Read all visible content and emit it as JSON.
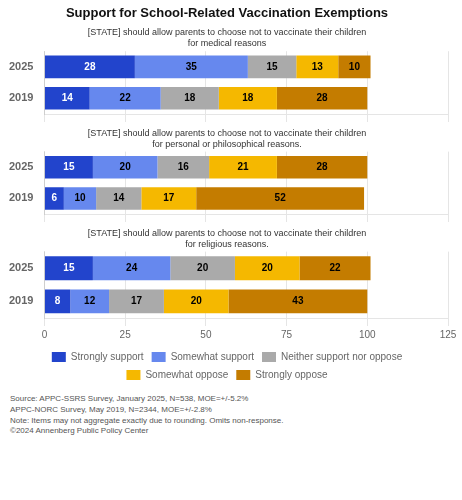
{
  "chart_data": [
    {
      "type": "bar",
      "orientation": "horizontal",
      "stacked": true,
      "title": "Support for School-Related Vaccination Exemptions",
      "subtitle": "[STATE] should allow parents to choose not to vaccinate their children\nfor medical reasons",
      "categories": [
        "2025",
        "2019"
      ],
      "series": [
        {
          "name": "Strongly support",
          "color": "#2244cc",
          "values": [
            28,
            14
          ]
        },
        {
          "name": "Somewhat support",
          "color": "#6688ee",
          "values": [
            35,
            22
          ]
        },
        {
          "name": "Neither support nor oppose",
          "color": "#aaaaaa",
          "values": [
            15,
            18
          ]
        },
        {
          "name": "Somewhat oppose",
          "color": "#f5b800",
          "values": [
            13,
            18
          ]
        },
        {
          "name": "Strongly oppose",
          "color": "#c47c00",
          "values": [
            10,
            28
          ]
        }
      ],
      "xlim": [
        0,
        125
      ],
      "xticks": [
        0,
        25,
        50,
        75,
        100,
        125
      ],
      "grid": true,
      "data_labels": true,
      "tick_labels": "y"
    },
    {
      "type": "bar",
      "orientation": "horizontal",
      "stacked": true,
      "subtitle": "[STATE] should allow parents to choose not to vaccinate their children\nfor personal or philosophical reasons.",
      "categories": [
        "2025",
        "2019"
      ],
      "series": [
        {
          "name": "Strongly support",
          "color": "#2244cc",
          "values": [
            15,
            6
          ]
        },
        {
          "name": "Somewhat support",
          "color": "#6688ee",
          "values": [
            20,
            10
          ]
        },
        {
          "name": "Neither support nor oppose",
          "color": "#aaaaaa",
          "values": [
            16,
            14
          ]
        },
        {
          "name": "Somewhat oppose",
          "color": "#f5b800",
          "values": [
            21,
            17
          ]
        },
        {
          "name": "Strongly oppose",
          "color": "#c47c00",
          "values": [
            28,
            52
          ]
        }
      ],
      "xlim": [
        0,
        125
      ],
      "xticks": [
        0,
        25,
        50,
        75,
        100,
        125
      ],
      "grid": true,
      "data_labels": true,
      "tick_labels": "y"
    },
    {
      "type": "bar",
      "orientation": "horizontal",
      "stacked": true,
      "subtitle": "[STATE] should allow parents to choose not to vaccinate their children\nfor religious reasons.",
      "categories": [
        "2025",
        "2019"
      ],
      "series": [
        {
          "name": "Strongly support",
          "color": "#2244cc",
          "values": [
            15,
            8
          ]
        },
        {
          "name": "Somewhat support",
          "color": "#6688ee",
          "values": [
            24,
            12
          ]
        },
        {
          "name": "Neither support nor oppose",
          "color": "#aaaaaa",
          "values": [
            20,
            17
          ]
        },
        {
          "name": "Somewhat oppose",
          "color": "#f5b800",
          "values": [
            20,
            20
          ]
        },
        {
          "name": "Strongly oppose",
          "color": "#c47c00",
          "values": [
            22,
            43
          ]
        }
      ],
      "xlim": [
        0,
        125
      ],
      "xticks": [
        0,
        25,
        50,
        75,
        100,
        125
      ],
      "grid": true,
      "data_labels": true,
      "legend": "bottom",
      "annotations": [
        "Source: APPC-SSRS Survey, January 2025, N=538, MOE=+/-5.2%\nAPPC-NORC Survey, May 2019, N=2344, MOE=+/-2.8%\nNote: Items may not aggregate exactly due to rounding. Omits non-response.\n©2024 Annenberg Public Policy Center"
      ]
    }
  ]
}
